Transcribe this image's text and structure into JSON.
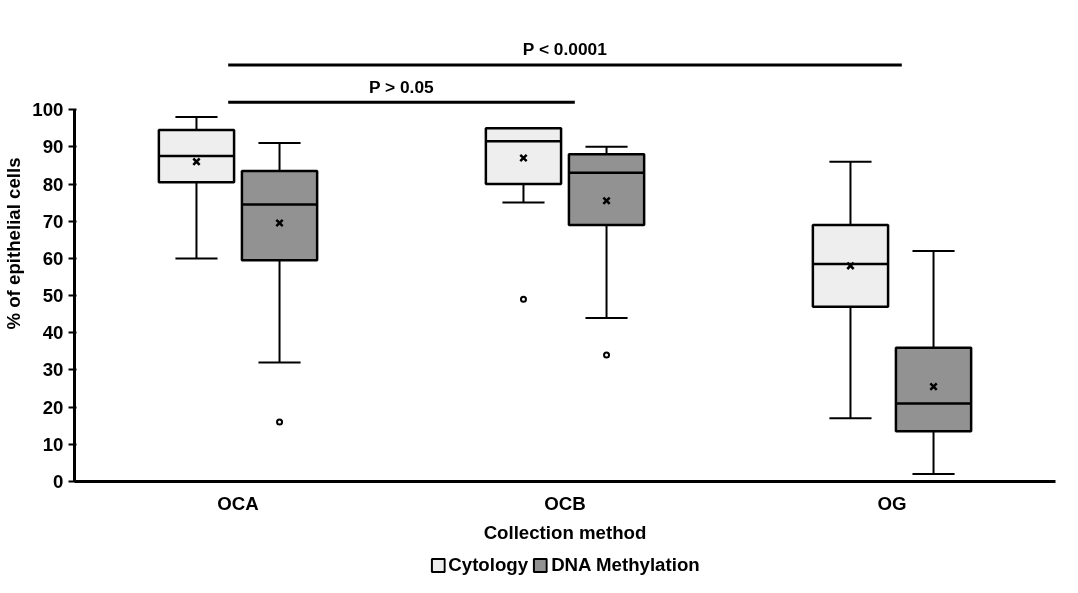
{
  "chart_data": {
    "type": "box",
    "xlabel": "Collection method",
    "ylabel": "% of epithelial cells",
    "categories": [
      "OCA",
      "OCB",
      "OG"
    ],
    "series": [
      {
        "name": "Cytology",
        "color": "#eeeeee",
        "boxes": [
          {
            "low": 60,
            "q1": 80.5,
            "median": 87.5,
            "q3": 94.5,
            "high": 98,
            "mean": 86
          },
          {
            "low": 75,
            "q1": 80,
            "median": 91.5,
            "q3": 95,
            "high": 95,
            "mean": 87,
            "outliers": [
              49
            ]
          },
          {
            "low": 17,
            "q1": 47,
            "median": 58.5,
            "q3": 69,
            "high": 86,
            "mean": 58
          }
        ]
      },
      {
        "name": "DNA Methylation",
        "color": "#929292",
        "boxes": [
          {
            "low": 32,
            "q1": 59.5,
            "median": 74.5,
            "q3": 83.5,
            "high": 91,
            "mean": 69.5,
            "outliers": [
              16
            ]
          },
          {
            "low": 44,
            "q1": 69,
            "median": 83,
            "q3": 88,
            "high": 90,
            "mean": 75.5,
            "outliers": [
              34
            ]
          },
          {
            "low": 2,
            "q1": 13.5,
            "median": 21,
            "q3": 36,
            "high": 62,
            "mean": 25.5
          }
        ]
      }
    ],
    "ylim": [
      0,
      100
    ],
    "yticks": [
      0,
      10,
      20,
      30,
      40,
      50,
      60,
      70,
      80,
      90,
      100
    ],
    "grid": false,
    "legend": "bottom",
    "annotations": [
      "P > 0.05",
      "P < 0.0001"
    ]
  }
}
